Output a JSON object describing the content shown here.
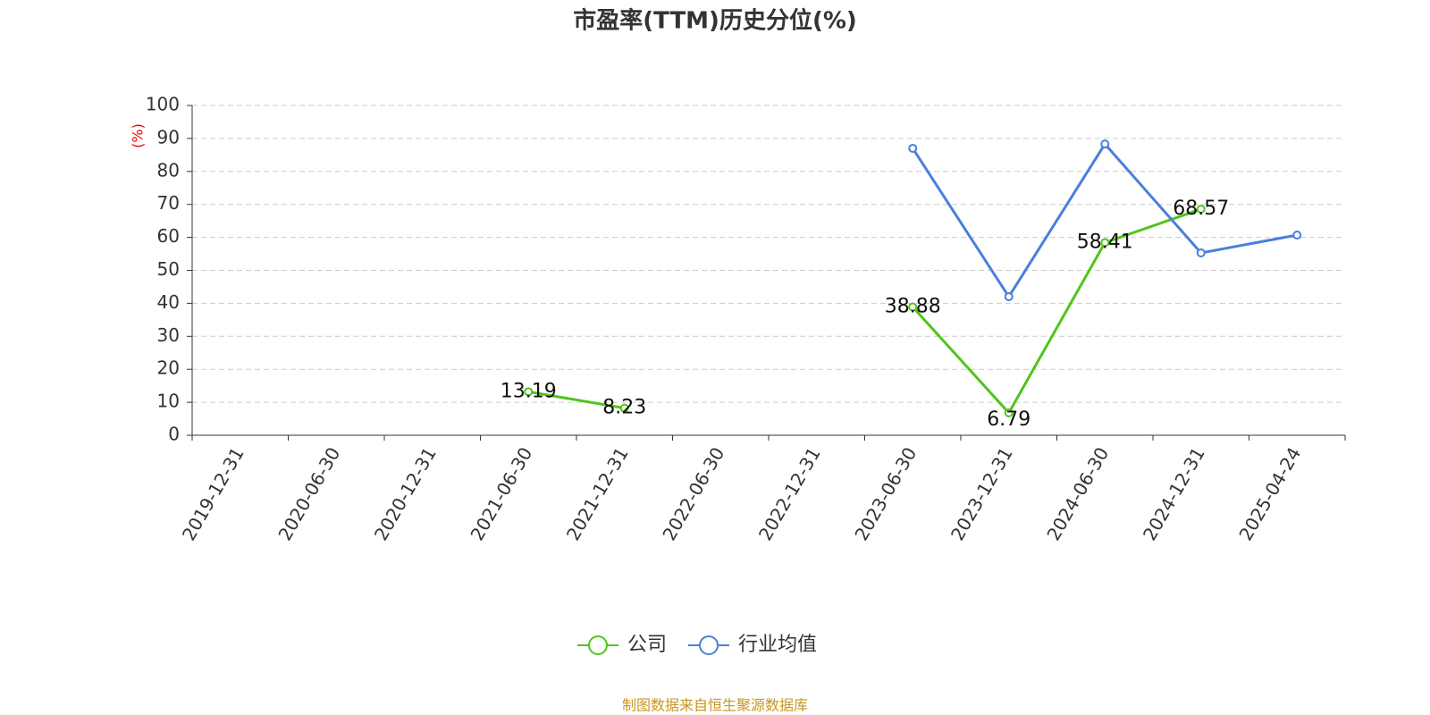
{
  "chart_data": {
    "type": "line",
    "title": "市盈率(TTM)历史分位(%)",
    "y_label": "(%)",
    "categories": [
      "2019-12-31",
      "2020-06-30",
      "2020-12-31",
      "2021-06-30",
      "2021-12-31",
      "2022-06-30",
      "2022-12-31",
      "2023-06-30",
      "2023-12-31",
      "2024-06-30",
      "2024-12-31",
      "2025-04-24"
    ],
    "series": [
      {
        "name": "公司",
        "color": "#52c41a",
        "values": [
          null,
          null,
          null,
          13.19,
          8.23,
          null,
          null,
          38.88,
          6.79,
          58.41,
          68.57,
          null
        ],
        "show_labels": true
      },
      {
        "name": "行业均值",
        "color": "#4a7fdc",
        "values": [
          null,
          null,
          null,
          null,
          null,
          null,
          null,
          87,
          42,
          88.3,
          55.3,
          60.7
        ],
        "show_labels": false
      }
    ],
    "ylim": [
      0,
      100
    ],
    "yticks": [
      0,
      10,
      20,
      30,
      40,
      50,
      60,
      70,
      80,
      90,
      100
    ],
    "grid": true,
    "source": "制图数据来自恒生聚源数据库"
  }
}
